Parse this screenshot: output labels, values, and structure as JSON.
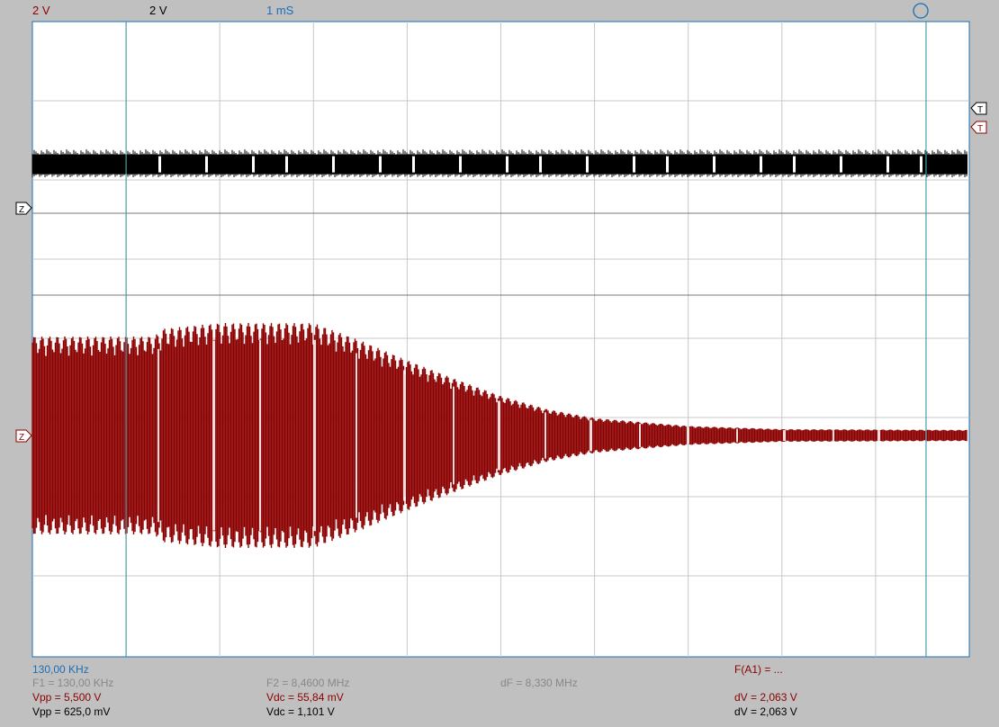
{
  "header": {
    "ch1_scale": "2 V",
    "ch2_scale": "2 V",
    "timebase": "1 mS"
  },
  "colors": {
    "background": "#c0c0c0",
    "screen": "#ffffff",
    "grid": "#c8c8c8",
    "divider": "#7a7a7a",
    "ch1": "#8b0000",
    "ch2": "#000000",
    "cursor": "#4a9fa8",
    "accent": "#1a6fb5",
    "dim": "#888888"
  },
  "markers": {
    "trigger_ch2": "T",
    "trigger_ch1": "T",
    "zero_ch2": "Z",
    "zero_ch1": "Z",
    "status_icon": "circle-icon"
  },
  "readouts": {
    "cursor_freq": "130,00 KHz",
    "f1": "F1 = 130,00 KHz",
    "f2": "F2 = 8,4600 MHz",
    "df": "dF = 8,330 MHz",
    "math": "F(A1) = ...",
    "ch1_vpp": "Vpp = 5,500 V",
    "ch1_vdc": "Vdc = 55,84 mV",
    "ch1_dv": "dV = 2,063 V",
    "ch2_vpp": "Vpp = 625,0 mV",
    "ch2_vdc": "Vdc = 1,101 V",
    "ch2_dv": "dV = 2,063 V"
  },
  "cursors": {
    "f1_division": 1,
    "f2_division": 9.5
  },
  "traces": {
    "divisions_x": 10,
    "ch2_digital_band": {
      "description_visible": false,
      "amplitude_divisions": 0.25,
      "offset_from_zero_divisions": 0.55
    },
    "ch1_envelope": {
      "peak_divisions_by_time": [
        [
          0,
          1.25
        ],
        [
          1.3,
          1.25
        ],
        [
          1.4,
          1.35
        ],
        [
          2.0,
          1.42
        ],
        [
          3.0,
          1.42
        ],
        [
          3.5,
          1.2
        ],
        [
          4.0,
          0.95
        ],
        [
          4.5,
          0.72
        ],
        [
          5.0,
          0.5
        ],
        [
          5.5,
          0.33
        ],
        [
          6.0,
          0.22
        ],
        [
          7.0,
          0.12
        ],
        [
          8.0,
          0.08
        ],
        [
          10.0,
          0.07
        ]
      ]
    }
  }
}
